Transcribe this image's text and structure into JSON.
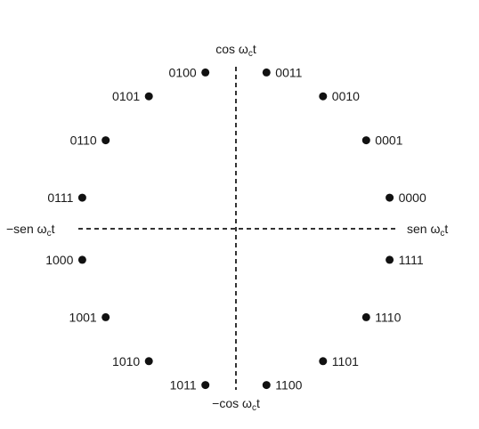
{
  "axes": {
    "top": {
      "text": "cos ω",
      "sub": "c",
      "tail": "t"
    },
    "bottom": {
      "text": "−cos ω",
      "sub": "c",
      "tail": "t"
    },
    "right": {
      "text": "sen ω",
      "sub": "c",
      "tail": "t"
    },
    "left": {
      "text": "−sen ω",
      "sub": "c",
      "tail": "t"
    }
  },
  "points": [
    {
      "code": "0000",
      "angle_deg": 11.25
    },
    {
      "code": "0001",
      "angle_deg": 33.75
    },
    {
      "code": "0010",
      "angle_deg": 56.25
    },
    {
      "code": "0011",
      "angle_deg": 78.75
    },
    {
      "code": "0100",
      "angle_deg": 101.25
    },
    {
      "code": "0101",
      "angle_deg": 123.75
    },
    {
      "code": "0110",
      "angle_deg": 146.25
    },
    {
      "code": "0111",
      "angle_deg": 168.75
    },
    {
      "code": "1000",
      "angle_deg": 191.25
    },
    {
      "code": "1001",
      "angle_deg": 213.75
    },
    {
      "code": "1010",
      "angle_deg": 236.25
    },
    {
      "code": "1011",
      "angle_deg": 258.75
    },
    {
      "code": "1100",
      "angle_deg": 281.25
    },
    {
      "code": "1101",
      "angle_deg": 303.75
    },
    {
      "code": "1110",
      "angle_deg": 326.25
    },
    {
      "code": "1111",
      "angle_deg": 348.75
    }
  ]
}
